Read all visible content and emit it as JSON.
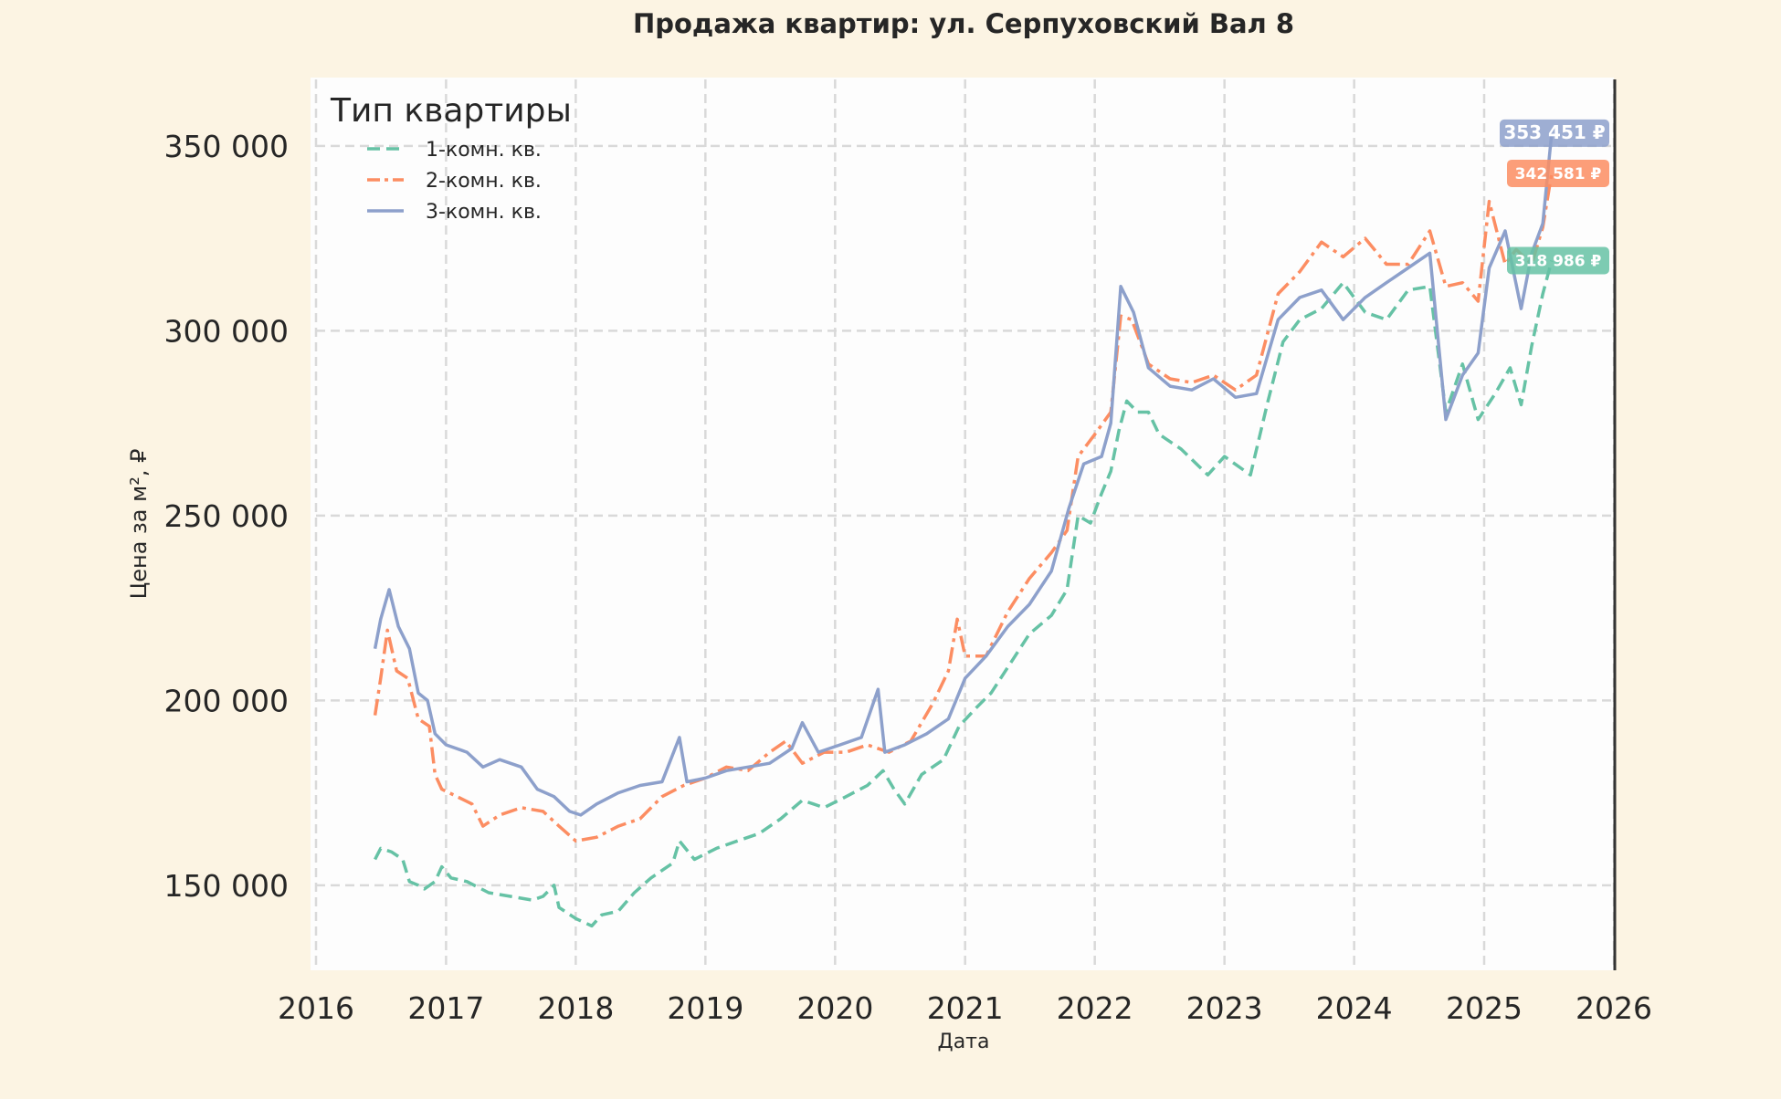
{
  "colors": {
    "page_background": "#fcf4e3",
    "plot_background": "#fdfdfd",
    "grid": "#d9d9d9",
    "text": "#262626",
    "series_1": "#66c2a5",
    "series_2": "#fc8d62",
    "series_3": "#8da0cb"
  },
  "chart_data": {
    "type": "line",
    "title": "Продажа квартир: ул. Серпуховский Вал 8",
    "xlabel": "Дата",
    "ylabel": "Цена за м², ₽",
    "x_ticks": [
      "2016",
      "2017",
      "2018",
      "2019",
      "2020",
      "2021",
      "2022",
      "2023",
      "2024",
      "2025",
      "2026"
    ],
    "y_ticks": [
      "150 000",
      "200 000",
      "250 000",
      "300 000",
      "350 000"
    ],
    "xlim": [
      "2016-01-01",
      "2026-01-01"
    ],
    "ylim": [
      127000,
      368000
    ],
    "grid": true,
    "legend": {
      "title": "Тип квартиры",
      "placement": "top-left"
    },
    "today_marker": "2026-01-01",
    "series": [
      {
        "name": "1-комн. кв.",
        "style": "dashed",
        "last_value_label": "318 986 ₽",
        "points": [
          [
            "2016-06-15",
            157000
          ],
          [
            "2016-07-01",
            160000
          ],
          [
            "2016-08-01",
            159000
          ],
          [
            "2016-09-01",
            157000
          ],
          [
            "2016-09-20",
            151000
          ],
          [
            "2016-10-15",
            150000
          ],
          [
            "2016-11-01",
            149000
          ],
          [
            "2016-12-01",
            151000
          ],
          [
            "2016-12-20",
            155000
          ],
          [
            "2017-01-15",
            152000
          ],
          [
            "2017-03-01",
            151000
          ],
          [
            "2017-05-01",
            148000
          ],
          [
            "2017-07-01",
            147000
          ],
          [
            "2017-09-01",
            146000
          ],
          [
            "2017-10-01",
            147000
          ],
          [
            "2017-11-01",
            150000
          ],
          [
            "2017-11-15",
            144000
          ],
          [
            "2018-01-01",
            141000
          ],
          [
            "2018-02-15",
            139000
          ],
          [
            "2018-03-15",
            142000
          ],
          [
            "2018-05-01",
            143000
          ],
          [
            "2018-06-15",
            148000
          ],
          [
            "2018-08-01",
            152000
          ],
          [
            "2018-10-01",
            156000
          ],
          [
            "2018-10-20",
            162000
          ],
          [
            "2018-12-01",
            157000
          ],
          [
            "2019-02-01",
            160000
          ],
          [
            "2019-04-01",
            162000
          ],
          [
            "2019-06-01",
            164000
          ],
          [
            "2019-08-01",
            168000
          ],
          [
            "2019-10-01",
            173000
          ],
          [
            "2019-12-01",
            171000
          ],
          [
            "2020-02-01",
            174000
          ],
          [
            "2020-04-01",
            177000
          ],
          [
            "2020-05-15",
            181000
          ],
          [
            "2020-06-15",
            176000
          ],
          [
            "2020-07-15",
            172000
          ],
          [
            "2020-09-01",
            180000
          ],
          [
            "2020-11-01",
            184000
          ],
          [
            "2020-12-15",
            193000
          ],
          [
            "2021-02-01",
            198000
          ],
          [
            "2021-03-15",
            202000
          ],
          [
            "2021-05-15",
            211000
          ],
          [
            "2021-07-01",
            218000
          ],
          [
            "2021-09-01",
            223000
          ],
          [
            "2021-10-15",
            230000
          ],
          [
            "2021-11-15",
            250000
          ],
          [
            "2021-12-20",
            248000
          ],
          [
            "2022-01-20",
            256000
          ],
          [
            "2022-02-15",
            262000
          ],
          [
            "2022-03-10",
            273000
          ],
          [
            "2022-04-01",
            281000
          ],
          [
            "2022-05-01",
            278000
          ],
          [
            "2022-06-01",
            278000
          ],
          [
            "2022-07-01",
            272000
          ],
          [
            "2022-09-01",
            268000
          ],
          [
            "2022-11-15",
            261000
          ],
          [
            "2023-01-01",
            266000
          ],
          [
            "2023-03-15",
            261000
          ],
          [
            "2023-05-01",
            280000
          ],
          [
            "2023-06-15",
            297000
          ],
          [
            "2023-08-01",
            303000
          ],
          [
            "2023-10-01",
            306000
          ],
          [
            "2023-12-01",
            313000
          ],
          [
            "2024-02-01",
            305000
          ],
          [
            "2024-04-01",
            303000
          ],
          [
            "2024-06-01",
            311000
          ],
          [
            "2024-08-01",
            312000
          ],
          [
            "2024-09-15",
            278000
          ],
          [
            "2024-11-01",
            291000
          ],
          [
            "2024-12-15",
            276000
          ],
          [
            "2025-02-01",
            283000
          ],
          [
            "2025-03-15",
            290000
          ],
          [
            "2025-04-15",
            280000
          ],
          [
            "2025-05-15",
            296000
          ],
          [
            "2025-06-15",
            310000
          ],
          [
            "2025-07-10",
            318986
          ]
        ]
      },
      {
        "name": "2-комн. кв.",
        "style": "dashdot",
        "last_value_label": "342 581 ₽",
        "points": [
          [
            "2016-06-15",
            196000
          ],
          [
            "2016-07-01",
            206000
          ],
          [
            "2016-07-20",
            219000
          ],
          [
            "2016-08-15",
            208000
          ],
          [
            "2016-09-15",
            206000
          ],
          [
            "2016-10-15",
            195000
          ],
          [
            "2016-11-15",
            193000
          ],
          [
            "2016-12-01",
            180000
          ],
          [
            "2016-12-20",
            176000
          ],
          [
            "2017-02-01",
            174000
          ],
          [
            "2017-03-15",
            172000
          ],
          [
            "2017-04-15",
            166000
          ],
          [
            "2017-06-01",
            169000
          ],
          [
            "2017-08-01",
            171000
          ],
          [
            "2017-10-01",
            170000
          ],
          [
            "2017-11-15",
            166000
          ],
          [
            "2018-01-01",
            162000
          ],
          [
            "2018-03-01",
            163000
          ],
          [
            "2018-05-01",
            166000
          ],
          [
            "2018-07-01",
            168000
          ],
          [
            "2018-09-01",
            174000
          ],
          [
            "2018-11-01",
            177000
          ],
          [
            "2019-01-01",
            179000
          ],
          [
            "2019-03-01",
            182000
          ],
          [
            "2019-05-01",
            181000
          ],
          [
            "2019-07-01",
            186000
          ],
          [
            "2019-08-15",
            189000
          ],
          [
            "2019-10-01",
            183000
          ],
          [
            "2019-12-01",
            186000
          ],
          [
            "2020-02-01",
            186000
          ],
          [
            "2020-04-01",
            188000
          ],
          [
            "2020-06-01",
            186000
          ],
          [
            "2020-08-01",
            189000
          ],
          [
            "2020-10-01",
            199000
          ],
          [
            "2020-11-15",
            208000
          ],
          [
            "2020-12-10",
            222000
          ],
          [
            "2021-01-01",
            212000
          ],
          [
            "2021-03-01",
            212000
          ],
          [
            "2021-05-01",
            224000
          ],
          [
            "2021-07-01",
            233000
          ],
          [
            "2021-09-01",
            240000
          ],
          [
            "2021-10-15",
            246000
          ],
          [
            "2021-11-15",
            266000
          ],
          [
            "2022-01-01",
            272000
          ],
          [
            "2022-02-15",
            278000
          ],
          [
            "2022-03-15",
            304000
          ],
          [
            "2022-04-15",
            303000
          ],
          [
            "2022-06-01",
            291000
          ],
          [
            "2022-08-01",
            287000
          ],
          [
            "2022-10-01",
            286000
          ],
          [
            "2022-12-01",
            288000
          ],
          [
            "2023-02-01",
            284000
          ],
          [
            "2023-04-01",
            288000
          ],
          [
            "2023-06-01",
            310000
          ],
          [
            "2023-08-01",
            316000
          ],
          [
            "2023-10-01",
            324000
          ],
          [
            "2023-12-01",
            320000
          ],
          [
            "2024-02-01",
            325000
          ],
          [
            "2024-04-01",
            318000
          ],
          [
            "2024-06-01",
            318000
          ],
          [
            "2024-08-01",
            327000
          ],
          [
            "2024-09-15",
            312000
          ],
          [
            "2024-11-01",
            313000
          ],
          [
            "2024-12-15",
            308000
          ],
          [
            "2025-01-15",
            335000
          ],
          [
            "2025-03-01",
            318000
          ],
          [
            "2025-04-01",
            322000
          ],
          [
            "2025-05-15",
            318000
          ],
          [
            "2025-06-15",
            328000
          ],
          [
            "2025-07-10",
            342581
          ]
        ]
      },
      {
        "name": "3-комн. кв.",
        "style": "solid",
        "last_value_label": "353 451 ₽",
        "points": [
          [
            "2016-06-15",
            214000
          ],
          [
            "2016-07-01",
            222000
          ],
          [
            "2016-07-25",
            230000
          ],
          [
            "2016-08-20",
            220000
          ],
          [
            "2016-09-20",
            214000
          ],
          [
            "2016-10-15",
            202000
          ],
          [
            "2016-11-10",
            200000
          ],
          [
            "2016-12-01",
            191000
          ],
          [
            "2017-01-01",
            188000
          ],
          [
            "2017-03-01",
            186000
          ],
          [
            "2017-04-15",
            182000
          ],
          [
            "2017-06-01",
            184000
          ],
          [
            "2017-08-01",
            182000
          ],
          [
            "2017-09-15",
            176000
          ],
          [
            "2017-11-01",
            174000
          ],
          [
            "2017-12-15",
            170000
          ],
          [
            "2018-01-15",
            169000
          ],
          [
            "2018-03-01",
            172000
          ],
          [
            "2018-05-01",
            175000
          ],
          [
            "2018-07-01",
            177000
          ],
          [
            "2018-09-01",
            178000
          ],
          [
            "2018-10-20",
            190000
          ],
          [
            "2018-11-10",
            178000
          ],
          [
            "2019-01-01",
            179000
          ],
          [
            "2019-03-01",
            181000
          ],
          [
            "2019-05-01",
            182000
          ],
          [
            "2019-07-01",
            183000
          ],
          [
            "2019-09-01",
            187000
          ],
          [
            "2019-10-01",
            194000
          ],
          [
            "2019-11-15",
            186000
          ],
          [
            "2020-01-15",
            188000
          ],
          [
            "2020-03-15",
            190000
          ],
          [
            "2020-05-01",
            203000
          ],
          [
            "2020-05-20",
            186000
          ],
          [
            "2020-07-15",
            188000
          ],
          [
            "2020-09-15",
            191000
          ],
          [
            "2020-11-15",
            195000
          ],
          [
            "2021-01-01",
            206000
          ],
          [
            "2021-03-01",
            212000
          ],
          [
            "2021-05-01",
            220000
          ],
          [
            "2021-07-01",
            226000
          ],
          [
            "2021-09-01",
            235000
          ],
          [
            "2021-10-20",
            252000
          ],
          [
            "2021-12-01",
            264000
          ],
          [
            "2022-01-20",
            266000
          ],
          [
            "2022-02-15",
            275000
          ],
          [
            "2022-03-15",
            312000
          ],
          [
            "2022-04-20",
            305000
          ],
          [
            "2022-06-01",
            290000
          ],
          [
            "2022-08-01",
            285000
          ],
          [
            "2022-10-01",
            284000
          ],
          [
            "2022-12-01",
            287000
          ],
          [
            "2023-02-01",
            282000
          ],
          [
            "2023-04-01",
            283000
          ],
          [
            "2023-06-01",
            303000
          ],
          [
            "2023-08-01",
            309000
          ],
          [
            "2023-10-01",
            311000
          ],
          [
            "2023-12-01",
            303000
          ],
          [
            "2024-02-01",
            309000
          ],
          [
            "2024-04-01",
            313000
          ],
          [
            "2024-06-01",
            317000
          ],
          [
            "2024-08-01",
            321000
          ],
          [
            "2024-09-15",
            276000
          ],
          [
            "2024-11-01",
            288000
          ],
          [
            "2024-12-15",
            294000
          ],
          [
            "2025-01-15",
            317000
          ],
          [
            "2025-03-01",
            327000
          ],
          [
            "2025-04-15",
            306000
          ],
          [
            "2025-05-15",
            321000
          ],
          [
            "2025-06-15",
            329000
          ],
          [
            "2025-07-10",
            353451
          ]
        ]
      }
    ]
  }
}
